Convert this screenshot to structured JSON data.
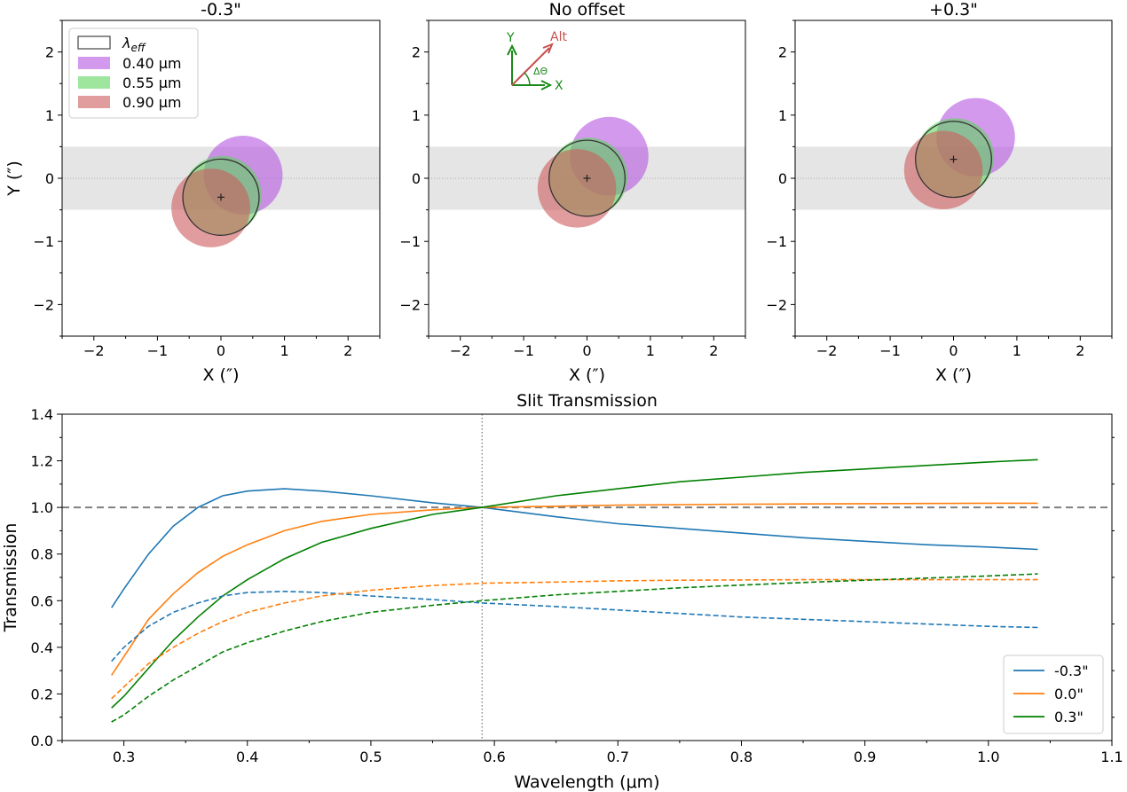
{
  "chart_data": [
    {
      "type": "scatter",
      "title": "-0.3\"",
      "xlabel": "X (″)",
      "ylabel": "Y (″)",
      "xlim": [
        -2.5,
        2.5
      ],
      "ylim": [
        -2.5,
        2.5
      ],
      "xticks": [
        -2,
        -1,
        0,
        1,
        2
      ],
      "yticks": [
        -2,
        -1,
        0,
        1,
        2
      ],
      "slit": {
        "y_min": -0.5,
        "y_max": 0.5
      },
      "target": {
        "x": 0.0,
        "y": -0.3
      },
      "circles": [
        {
          "name": "0.40 μm",
          "x": 0.35,
          "y": 0.05,
          "r": 0.62,
          "color": "#b455e0"
        },
        {
          "name": "0.55 μm",
          "x": 0.02,
          "y": -0.27,
          "r": 0.62,
          "color": "#5ed65e"
        },
        {
          "name": "0.90 μm",
          "x": -0.16,
          "y": -0.47,
          "r": 0.62,
          "color": "#cd5c5c"
        }
      ],
      "effective_circle": {
        "x": 0.0,
        "y": -0.3,
        "r": 0.6
      },
      "legend": {
        "title": "λ",
        "title_sub": "eff",
        "items": [
          {
            "label": "0.40 μm",
            "color": "#b455e0"
          },
          {
            "label": "0.55 μm",
            "color": "#5ed65e"
          },
          {
            "label": "0.90 μm",
            "color": "#cd5c5c"
          }
        ]
      }
    },
    {
      "type": "scatter",
      "title": "No offset",
      "xlabel": "X (″)",
      "xlim": [
        -2.5,
        2.5
      ],
      "ylim": [
        -2.5,
        2.5
      ],
      "xticks": [
        -2,
        -1,
        0,
        1,
        2
      ],
      "yticks": [
        -2,
        -1,
        0,
        1,
        2
      ],
      "slit": {
        "y_min": -0.5,
        "y_max": 0.5
      },
      "target": {
        "x": 0.0,
        "y": 0.0
      },
      "circles": [
        {
          "name": "0.40 μm",
          "x": 0.35,
          "y": 0.35,
          "r": 0.62,
          "color": "#b455e0"
        },
        {
          "name": "0.55 μm",
          "x": 0.02,
          "y": 0.02,
          "r": 0.62,
          "color": "#5ed65e"
        },
        {
          "name": "0.90 μm",
          "x": -0.16,
          "y": -0.16,
          "r": 0.62,
          "color": "#cd5c5c"
        }
      ],
      "effective_circle": {
        "x": 0.0,
        "y": 0.0,
        "r": 0.6
      },
      "compass": {
        "y_label": "Y",
        "x_label": "X",
        "alt_label": "Alt",
        "angle_label": "ΔΘ"
      }
    },
    {
      "type": "scatter",
      "title": "+0.3\"",
      "xlabel": "X (″)",
      "xlim": [
        -2.5,
        2.5
      ],
      "ylim": [
        -2.5,
        2.5
      ],
      "xticks": [
        -2,
        -1,
        0,
        1,
        2
      ],
      "yticks": [
        -2,
        -1,
        0,
        1,
        2
      ],
      "slit": {
        "y_min": -0.5,
        "y_max": 0.5
      },
      "target": {
        "x": 0.0,
        "y": 0.3
      },
      "circles": [
        {
          "name": "0.40 μm",
          "x": 0.35,
          "y": 0.65,
          "r": 0.62,
          "color": "#b455e0"
        },
        {
          "name": "0.55 μm",
          "x": 0.02,
          "y": 0.33,
          "r": 0.62,
          "color": "#5ed65e"
        },
        {
          "name": "0.90 μm",
          "x": -0.16,
          "y": 0.13,
          "r": 0.62,
          "color": "#cd5c5c"
        }
      ],
      "effective_circle": {
        "x": 0.0,
        "y": 0.3,
        "r": 0.6
      }
    },
    {
      "type": "line",
      "title": "Slit Transmission",
      "xlabel": "Wavelength (μm)",
      "ylabel": "Transmission",
      "xlim": [
        0.25,
        1.1
      ],
      "ylim": [
        0.0,
        1.4
      ],
      "xticks": [
        0.3,
        0.4,
        0.5,
        0.6,
        0.7,
        0.8,
        0.9,
        1.0,
        1.1
      ],
      "yticks": [
        0.0,
        0.2,
        0.4,
        0.6,
        0.8,
        1.0,
        1.2,
        1.4
      ],
      "reference_hline": 1.0,
      "reference_vline": 0.59,
      "x": [
        0.29,
        0.3,
        0.32,
        0.34,
        0.36,
        0.38,
        0.4,
        0.43,
        0.46,
        0.5,
        0.55,
        0.59,
        0.65,
        0.7,
        0.75,
        0.8,
        0.85,
        0.9,
        0.95,
        1.0,
        1.04
      ],
      "series": [
        {
          "name": "-0.3\"",
          "color": "#1f77b4",
          "dash": false,
          "values": [
            0.57,
            0.65,
            0.8,
            0.92,
            1.0,
            1.05,
            1.07,
            1.08,
            1.07,
            1.05,
            1.02,
            1.0,
            0.96,
            0.93,
            0.91,
            0.89,
            0.87,
            0.855,
            0.84,
            0.83,
            0.82
          ]
        },
        {
          "name": "0.0\"",
          "color": "#ff7f0e",
          "dash": false,
          "values": [
            0.28,
            0.36,
            0.52,
            0.63,
            0.72,
            0.79,
            0.84,
            0.9,
            0.94,
            0.97,
            0.99,
            1.0,
            1.005,
            1.01,
            1.012,
            1.014,
            1.015,
            1.016,
            1.017,
            1.018,
            1.018
          ]
        },
        {
          "name": "0.3\"",
          "color": "#008000",
          "dash": false,
          "values": [
            0.14,
            0.19,
            0.31,
            0.43,
            0.53,
            0.62,
            0.69,
            0.78,
            0.85,
            0.91,
            0.97,
            1.0,
            1.05,
            1.08,
            1.11,
            1.13,
            1.15,
            1.165,
            1.18,
            1.195,
            1.205
          ]
        },
        {
          "name": "-0.3\" (dashed)",
          "color": "#1f77b4",
          "dash": true,
          "values": [
            0.34,
            0.4,
            0.49,
            0.55,
            0.59,
            0.62,
            0.635,
            0.64,
            0.635,
            0.62,
            0.605,
            0.59,
            0.575,
            0.56,
            0.545,
            0.53,
            0.52,
            0.51,
            0.5,
            0.49,
            0.485
          ]
        },
        {
          "name": "0.0\" (dashed)",
          "color": "#ff7f0e",
          "dash": true,
          "values": [
            0.18,
            0.23,
            0.33,
            0.4,
            0.46,
            0.51,
            0.55,
            0.59,
            0.62,
            0.645,
            0.665,
            0.675,
            0.68,
            0.685,
            0.688,
            0.689,
            0.69,
            0.69,
            0.69,
            0.69,
            0.69
          ]
        },
        {
          "name": "0.3\" (dashed)",
          "color": "#008000",
          "dash": true,
          "values": [
            0.08,
            0.11,
            0.19,
            0.26,
            0.32,
            0.38,
            0.42,
            0.47,
            0.51,
            0.55,
            0.58,
            0.6,
            0.625,
            0.64,
            0.655,
            0.667,
            0.678,
            0.688,
            0.697,
            0.706,
            0.715
          ]
        }
      ],
      "legend": {
        "position": "bottom-right",
        "items": [
          {
            "label": "-0.3\"",
            "color": "#1f77b4"
          },
          {
            "label": "0.0\"",
            "color": "#ff7f0e"
          },
          {
            "label": "0.3\"",
            "color": "#008000"
          }
        ]
      }
    }
  ]
}
